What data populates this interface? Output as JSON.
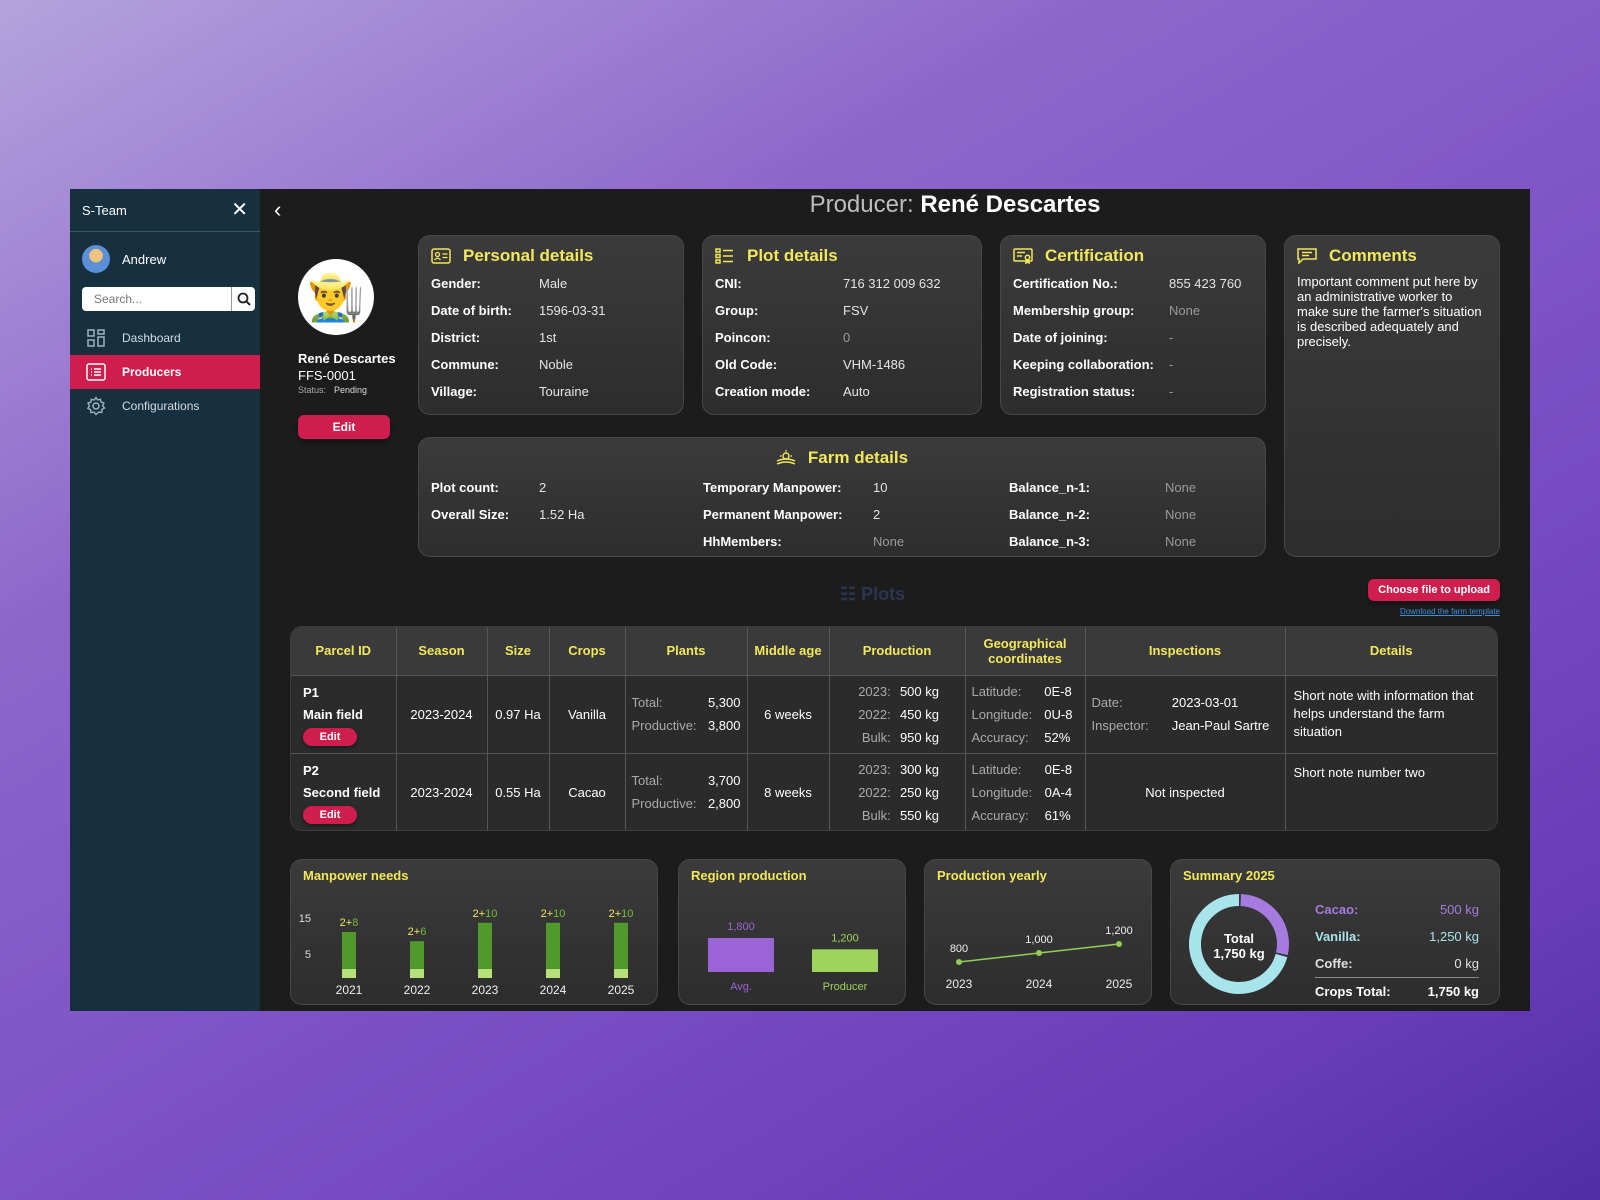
{
  "sidebar": {
    "app_title": "S-Team",
    "user": "Andrew",
    "search_placeholder": "Search...",
    "items": [
      {
        "label": "Dashboard",
        "icon": "grid-icon"
      },
      {
        "label": "Producers",
        "icon": "list-icon",
        "active": true
      },
      {
        "label": "Configurations",
        "icon": "gear-icon"
      }
    ]
  },
  "header": {
    "title_prefix": "Producer:",
    "title_name": "René Descartes"
  },
  "profile": {
    "name": "René Descartes",
    "code": "FFS-0001",
    "status_label": "Status:",
    "status_value": "Pending",
    "edit_label": "Edit"
  },
  "personal": {
    "title": "Personal details",
    "rows": [
      {
        "k": "Gender:",
        "v": "Male"
      },
      {
        "k": "Date of birth:",
        "v": "1596-03-31"
      },
      {
        "k": "District:",
        "v": "1st"
      },
      {
        "k": "Commune:",
        "v": "Noble"
      },
      {
        "k": "Village:",
        "v": "Touraine"
      }
    ]
  },
  "plot": {
    "title": "Plot details",
    "rows": [
      {
        "k": "CNI:",
        "v": "716 312 009 632"
      },
      {
        "k": "Group:",
        "v": "FSV"
      },
      {
        "k": "Poincon:",
        "v": "0"
      },
      {
        "k": "Old Code:",
        "v": "VHM-1486"
      },
      {
        "k": "Creation mode:",
        "v": "Auto"
      }
    ]
  },
  "certification": {
    "title": "Certification",
    "rows": [
      {
        "k": "Certification No.:",
        "v": "855 423 760"
      },
      {
        "k": "Membership group:",
        "v": "None"
      },
      {
        "k": "Date of joining:",
        "v": "-"
      },
      {
        "k": "Keeping collaboration:",
        "v": "-"
      },
      {
        "k": "Registration status:",
        "v": "-"
      }
    ]
  },
  "comments": {
    "title": "Comments",
    "text": "Important comment put here by an administrative worker to make sure the farmer's situation is described adequately and precisely."
  },
  "farm": {
    "title": "Farm details",
    "col1": [
      {
        "k": "Plot count:",
        "v": "2"
      },
      {
        "k": "Overall Size:",
        "v": "1.52 Ha"
      }
    ],
    "col2": [
      {
        "k": "Temporary Manpower:",
        "v": "10"
      },
      {
        "k": "Permanent Manpower:",
        "v": "2"
      },
      {
        "k": "HhMembers:",
        "v": "None"
      }
    ],
    "col3": [
      {
        "k": "Balance_n-1:",
        "v": "None"
      },
      {
        "k": "Balance_n-2:",
        "v": "None"
      },
      {
        "k": "Balance_n-3:",
        "v": "None"
      }
    ]
  },
  "plots": {
    "title": "Plots",
    "upload_label": "Choose file to upload",
    "download_label": "Download the farm template",
    "headers": [
      "Parcel ID",
      "Season",
      "Size",
      "Crops",
      "Plants",
      "Middle age",
      "Production",
      "Geographical coordinates",
      "Inspections",
      "Details"
    ],
    "rows": [
      {
        "id": "P1",
        "name": "Main field",
        "edit": "Edit",
        "season": "2023-2024",
        "size": "0.97 Ha",
        "crop": "Vanilla",
        "plants_total_l": "Total:",
        "plants_total": "5,300",
        "plants_prod_l": "Productive:",
        "plants_prod": "3,800",
        "age": "6 weeks",
        "prod": [
          {
            "l": "2023:",
            "v": "500 kg"
          },
          {
            "l": "2022:",
            "v": "450 kg"
          },
          {
            "l": "Bulk:",
            "v": "950 kg"
          }
        ],
        "geo": [
          {
            "l": "Latitude:",
            "v": "0E-8"
          },
          {
            "l": "Longitude:",
            "v": "0U-8"
          },
          {
            "l": "Accuracy:",
            "v": "52%"
          }
        ],
        "insp_date_l": "Date:",
        "insp_date": "2023-03-01",
        "insp_by_l": "Inspector:",
        "insp_by": "Jean-Paul Sartre",
        "details": "Short note with information that helps understand the farm situation"
      },
      {
        "id": "P2",
        "name": "Second field",
        "edit": "Edit",
        "season": "2023-2024",
        "size": "0.55 Ha",
        "crop": "Cacao",
        "plants_total_l": "Total:",
        "plants_total": "3,700",
        "plants_prod_l": "Productive:",
        "plants_prod": "2,800",
        "age": "8 weeks",
        "prod": [
          {
            "l": "2023:",
            "v": "300 kg"
          },
          {
            "l": "2022:",
            "v": "250 kg"
          },
          {
            "l": "Bulk:",
            "v": "550 kg"
          }
        ],
        "geo": [
          {
            "l": "Latitude:",
            "v": "0E-8"
          },
          {
            "l": "Longitude:",
            "v": "0A-4"
          },
          {
            "l": "Accuracy:",
            "v": "61%"
          }
        ],
        "insp_status": "Not inspected",
        "details": "Short note number two"
      }
    ]
  },
  "charts": {
    "manpower": {
      "title": "Manpower needs",
      "yticks": [
        "15",
        "5"
      ],
      "bars": [
        {
          "year": "2021",
          "perm": 2,
          "temp": 8
        },
        {
          "year": "2022",
          "perm": 2,
          "temp": 6
        },
        {
          "year": "2023",
          "perm": 2,
          "temp": 10
        },
        {
          "year": "2024",
          "perm": 2,
          "temp": 10
        },
        {
          "year": "2025",
          "perm": 2,
          "temp": 10
        }
      ],
      "colors": {
        "perm": "#b6e07a",
        "temp": "#4f9a2a",
        "label_perm": "#f2e85b",
        "label_temp": "#6fbf3a"
      }
    },
    "region": {
      "title": "Region production",
      "bars": [
        {
          "label": "Avg.",
          "value": 1800,
          "value_label": "1,800",
          "color": "#9a63d6"
        },
        {
          "label": "Producer",
          "value": 1200,
          "value_label": "1,200",
          "color": "#9ed45c"
        }
      ]
    },
    "yearly": {
      "title": "Production yearly",
      "points": [
        {
          "year": "2023",
          "value": 800,
          "value_label": "800"
        },
        {
          "year": "2024",
          "value": 1000,
          "value_label": "1,000"
        },
        {
          "year": "2025",
          "value": 1200,
          "value_label": "1,200"
        }
      ],
      "color": "#8fd052"
    },
    "summary": {
      "title": "Summary 2025",
      "center_label": "Total",
      "center_value": "1,750 kg",
      "rows": [
        {
          "k": "Cacao:",
          "v": "500 kg",
          "color": "#a57be0"
        },
        {
          "k": "Vanilla:",
          "v": "1,250 kg",
          "color": "#a8e4ec"
        },
        {
          "k": "Coffe:",
          "v": "0 kg",
          "color": "#e0e0e0"
        }
      ],
      "total_k": "Crops Total:",
      "total_v": "1,750 kg",
      "slices": [
        {
          "name": "Cacao",
          "value": 500,
          "color": "#a57be0"
        },
        {
          "name": "Vanilla",
          "value": 1250,
          "color": "#a8e4ec"
        }
      ]
    }
  }
}
